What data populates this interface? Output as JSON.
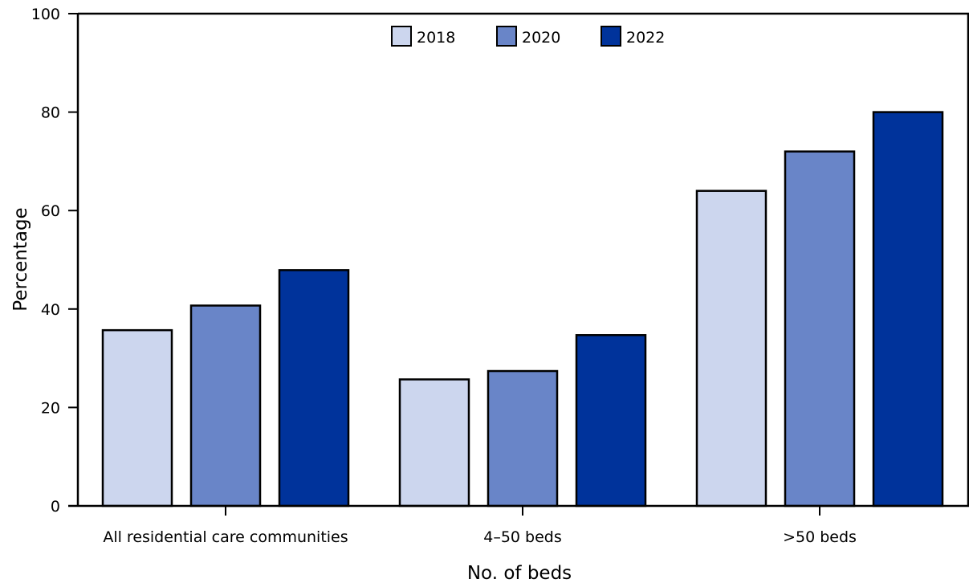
{
  "chart_data": {
    "type": "bar",
    "categories": [
      "All residential care communities",
      "4–50 beds",
      ">50 beds"
    ],
    "series": [
      {
        "name": "2018",
        "color": "#ccd6ee",
        "values": [
          35.7,
          25.7,
          64.0
        ]
      },
      {
        "name": "2020",
        "color": "#6985c8",
        "values": [
          40.7,
          27.4,
          72.0
        ]
      },
      {
        "name": "2022",
        "color": "#00339b",
        "values": [
          47.9,
          34.7,
          80.0
        ]
      }
    ],
    "xlabel": "No. of beds",
    "ylabel": "Percentage",
    "ylim": [
      0,
      100
    ],
    "yticks": [
      "0",
      "20",
      "40",
      "60",
      "80",
      "100"
    ],
    "grid": false,
    "legend_position": "top-center"
  }
}
